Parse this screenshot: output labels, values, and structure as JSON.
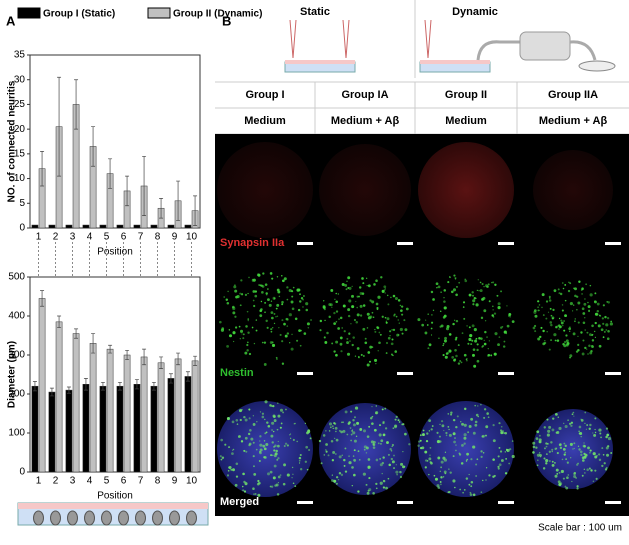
{
  "chart_data": [
    {
      "type": "bar",
      "ylabel": "NO. of connected neuritis",
      "xlabel": "Position",
      "categories": [
        "1",
        "2",
        "3",
        "4",
        "5",
        "6",
        "7",
        "8",
        "9",
        "10"
      ],
      "series": [
        {
          "name": "Group I (Static)",
          "color": "#000000",
          "values": [
            0.6,
            0.6,
            0.6,
            0.6,
            0.6,
            0.6,
            0.6,
            0.6,
            0.6,
            0.6
          ]
        },
        {
          "name": "Group II (Dynamic)",
          "color": "#c0c0c0",
          "values": [
            12,
            20.5,
            25,
            16.5,
            11,
            7.5,
            8.5,
            4,
            5.5,
            3.5
          ],
          "errors": [
            3.5,
            10,
            5,
            4,
            3,
            3,
            6,
            2,
            4,
            3
          ]
        }
      ],
      "ylim": [
        0,
        35
      ],
      "yticks": [
        0,
        5,
        10,
        15,
        20,
        25,
        30,
        35
      ]
    },
    {
      "type": "bar",
      "ylabel": "Diameter (μm)",
      "xlabel": "Position",
      "categories": [
        "1",
        "2",
        "3",
        "4",
        "5",
        "6",
        "7",
        "8",
        "9",
        "10"
      ],
      "series": [
        {
          "color": "#000000",
          "values": [
            220,
            205,
            210,
            225,
            220,
            220,
            225,
            220,
            240,
            245
          ],
          "errors": [
            12,
            10,
            8,
            15,
            10,
            10,
            12,
            10,
            12,
            12
          ]
        },
        {
          "color": "#c0c0c0",
          "values": [
            445,
            385,
            355,
            330,
            315,
            300,
            295,
            280,
            290,
            285
          ],
          "errors": [
            20,
            15,
            12,
            25,
            10,
            12,
            20,
            15,
            15,
            12
          ]
        }
      ],
      "ylim": [
        0,
        500
      ],
      "yticks": [
        0,
        100,
        200,
        300,
        400,
        500
      ]
    }
  ],
  "panel_labels": [
    "A",
    "B"
  ],
  "panel_b": {
    "conditions": [
      "Static",
      "Dynamic"
    ],
    "groups": [
      "Group I",
      "Group IA",
      "Group II",
      "Group IIA"
    ],
    "media": [
      "Medium",
      "Medium + Aβ",
      "Medium",
      "Medium + Aβ"
    ],
    "stains": [
      "Synapsin IIa",
      "Nestin",
      "Merged"
    ],
    "scale_bar": "Scale bar : 100 um"
  }
}
